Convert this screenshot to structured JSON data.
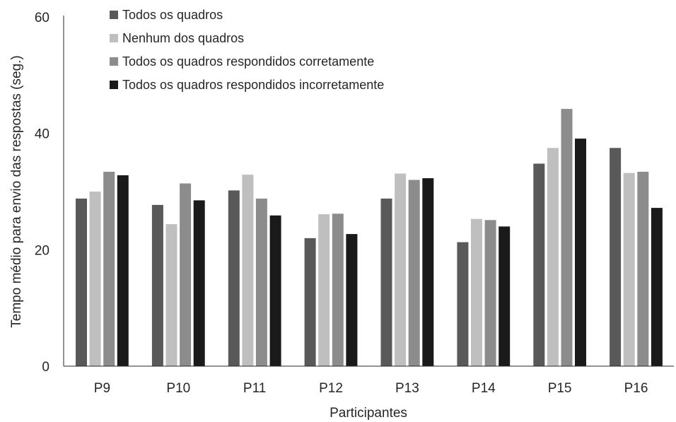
{
  "chart_data": {
    "type": "bar",
    "title": "",
    "xlabel": "Participantes",
    "ylabel": "Tempo médio para envio das respostas (seg.)",
    "ylim": [
      0,
      60
    ],
    "yticks": [
      0,
      20,
      40,
      60
    ],
    "grid": false,
    "legend_position": "top-left",
    "categories": [
      "P9",
      "P10",
      "P11",
      "P12",
      "P13",
      "P14",
      "P15",
      "P16"
    ],
    "series": [
      {
        "name": "Todos os quadros",
        "color": "#595959",
        "values": [
          28.8,
          27.7,
          30.2,
          22.0,
          28.8,
          21.3,
          34.8,
          37.5
        ]
      },
      {
        "name": "Nenhum dos quadros",
        "color": "#bfbfbf",
        "values": [
          30.0,
          24.4,
          32.9,
          26.1,
          33.1,
          25.3,
          37.5,
          33.2
        ]
      },
      {
        "name": "Todos os quadros respondidos corretamente",
        "color": "#8c8c8c",
        "values": [
          33.4,
          31.4,
          28.8,
          26.2,
          32.0,
          25.1,
          44.2,
          33.4
        ]
      },
      {
        "name": "Todos os quadros respondidos incorretamente",
        "color": "#1a1a1a",
        "values": [
          32.8,
          28.5,
          25.9,
          22.7,
          32.3,
          24.0,
          39.1,
          27.2
        ]
      }
    ]
  }
}
